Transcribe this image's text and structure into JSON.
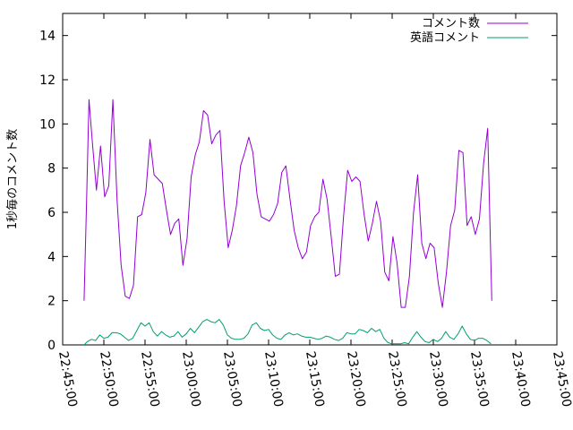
{
  "chart_data": {
    "type": "line",
    "ylabel": "1秒毎のコメント数",
    "ylim": [
      0,
      15
    ],
    "yticks": [
      "0",
      "2",
      "4",
      "6",
      "8",
      "10",
      "12",
      "14"
    ],
    "xticks": [
      "22:45:00",
      "22:50:00",
      "22:55:00",
      "23:00:00",
      "23:05:00",
      "23:10:00",
      "23:15:00",
      "23:20:00",
      "23:25:00",
      "23:30:00",
      "23:35:00",
      "23:40:00",
      "23:45:00"
    ],
    "xlim_minutes": [
      0,
      60
    ],
    "legend_position": "top-right",
    "series": [
      {
        "name": "コメント数",
        "color": "#9400d3",
        "points": [
          [
            2.6,
            2.0
          ],
          [
            2.9,
            6.5
          ],
          [
            3.2,
            11.1
          ],
          [
            3.6,
            9.2
          ],
          [
            4.1,
            7.0
          ],
          [
            4.6,
            9.0
          ],
          [
            5.1,
            6.7
          ],
          [
            5.6,
            7.2
          ],
          [
            6.1,
            11.1
          ],
          [
            6.6,
            6.6
          ],
          [
            7.1,
            3.6
          ],
          [
            7.6,
            2.2
          ],
          [
            8.1,
            2.1
          ],
          [
            8.6,
            2.7
          ],
          [
            9.1,
            5.8
          ],
          [
            9.6,
            5.9
          ],
          [
            10.1,
            6.9
          ],
          [
            10.6,
            9.3
          ],
          [
            11.1,
            7.7
          ],
          [
            11.6,
            7.5
          ],
          [
            12.1,
            7.3
          ],
          [
            12.6,
            6.1
          ],
          [
            13.1,
            5.0
          ],
          [
            13.6,
            5.5
          ],
          [
            14.1,
            5.7
          ],
          [
            14.6,
            3.6
          ],
          [
            15.1,
            4.8
          ],
          [
            15.6,
            7.6
          ],
          [
            16.1,
            8.6
          ],
          [
            16.6,
            9.2
          ],
          [
            17.1,
            10.6
          ],
          [
            17.6,
            10.4
          ],
          [
            18.1,
            9.1
          ],
          [
            18.6,
            9.5
          ],
          [
            19.1,
            9.7
          ],
          [
            19.6,
            6.5
          ],
          [
            20.1,
            4.4
          ],
          [
            20.6,
            5.2
          ],
          [
            21.1,
            6.3
          ],
          [
            21.6,
            8.1
          ],
          [
            22.1,
            8.7
          ],
          [
            22.6,
            9.4
          ],
          [
            23.1,
            8.7
          ],
          [
            23.6,
            6.8
          ],
          [
            24.1,
            5.8
          ],
          [
            24.6,
            5.7
          ],
          [
            25.1,
            5.6
          ],
          [
            25.6,
            5.9
          ],
          [
            26.1,
            6.4
          ],
          [
            26.6,
            7.8
          ],
          [
            27.1,
            8.1
          ],
          [
            27.6,
            6.6
          ],
          [
            28.1,
            5.2
          ],
          [
            28.6,
            4.4
          ],
          [
            29.1,
            3.9
          ],
          [
            29.6,
            4.2
          ],
          [
            30.1,
            5.4
          ],
          [
            30.6,
            5.8
          ],
          [
            31.1,
            6.0
          ],
          [
            31.6,
            7.5
          ],
          [
            32.1,
            6.6
          ],
          [
            32.6,
            4.9
          ],
          [
            33.1,
            3.1
          ],
          [
            33.6,
            3.2
          ],
          [
            34.1,
            5.8
          ],
          [
            34.6,
            7.9
          ],
          [
            35.1,
            7.4
          ],
          [
            35.6,
            7.6
          ],
          [
            36.1,
            7.4
          ],
          [
            36.6,
            5.9
          ],
          [
            37.1,
            4.7
          ],
          [
            37.6,
            5.5
          ],
          [
            38.1,
            6.5
          ],
          [
            38.6,
            5.6
          ],
          [
            39.1,
            3.3
          ],
          [
            39.6,
            2.9
          ],
          [
            40.1,
            4.9
          ],
          [
            40.6,
            3.7
          ],
          [
            41.1,
            1.7
          ],
          [
            41.6,
            1.7
          ],
          [
            42.1,
            3.1
          ],
          [
            42.6,
            6.0
          ],
          [
            43.1,
            7.7
          ],
          [
            43.6,
            4.6
          ],
          [
            44.1,
            3.9
          ],
          [
            44.6,
            4.6
          ],
          [
            45.1,
            4.4
          ],
          [
            45.6,
            2.8
          ],
          [
            46.1,
            1.7
          ],
          [
            46.6,
            3.3
          ],
          [
            47.1,
            5.4
          ],
          [
            47.6,
            6.1
          ],
          [
            48.1,
            8.8
          ],
          [
            48.6,
            8.7
          ],
          [
            49.1,
            5.4
          ],
          [
            49.6,
            5.8
          ],
          [
            50.1,
            5.0
          ],
          [
            50.6,
            5.7
          ],
          [
            51.1,
            8.2
          ],
          [
            51.6,
            9.8
          ],
          [
            52.1,
            2.0
          ]
        ]
      },
      {
        "name": "英語コメント",
        "color": "#009e73",
        "points": [
          [
            2.6,
            0.0
          ],
          [
            3.0,
            0.15
          ],
          [
            3.5,
            0.25
          ],
          [
            4.0,
            0.2
          ],
          [
            4.5,
            0.45
          ],
          [
            5.0,
            0.3
          ],
          [
            5.5,
            0.35
          ],
          [
            6.0,
            0.55
          ],
          [
            6.5,
            0.55
          ],
          [
            7.0,
            0.5
          ],
          [
            7.5,
            0.35
          ],
          [
            8.0,
            0.2
          ],
          [
            8.5,
            0.3
          ],
          [
            9.0,
            0.65
          ],
          [
            9.5,
            1.0
          ],
          [
            10.0,
            0.85
          ],
          [
            10.5,
            1.0
          ],
          [
            11.0,
            0.6
          ],
          [
            11.5,
            0.4
          ],
          [
            12.0,
            0.6
          ],
          [
            12.5,
            0.45
          ],
          [
            13.0,
            0.35
          ],
          [
            13.5,
            0.4
          ],
          [
            14.0,
            0.6
          ],
          [
            14.5,
            0.35
          ],
          [
            15.0,
            0.5
          ],
          [
            15.5,
            0.75
          ],
          [
            16.0,
            0.55
          ],
          [
            16.5,
            0.8
          ],
          [
            17.0,
            1.05
          ],
          [
            17.5,
            1.15
          ],
          [
            18.0,
            1.05
          ],
          [
            18.5,
            1.0
          ],
          [
            19.0,
            1.15
          ],
          [
            19.5,
            0.9
          ],
          [
            20.0,
            0.45
          ],
          [
            20.5,
            0.3
          ],
          [
            21.0,
            0.25
          ],
          [
            21.5,
            0.25
          ],
          [
            22.0,
            0.3
          ],
          [
            22.5,
            0.5
          ],
          [
            23.0,
            0.9
          ],
          [
            23.5,
            1.0
          ],
          [
            24.0,
            0.75
          ],
          [
            24.5,
            0.65
          ],
          [
            25.0,
            0.7
          ],
          [
            25.5,
            0.45
          ],
          [
            26.0,
            0.3
          ],
          [
            26.5,
            0.25
          ],
          [
            27.0,
            0.45
          ],
          [
            27.5,
            0.55
          ],
          [
            28.0,
            0.45
          ],
          [
            28.5,
            0.5
          ],
          [
            29.0,
            0.4
          ],
          [
            29.5,
            0.35
          ],
          [
            30.0,
            0.35
          ],
          [
            30.5,
            0.3
          ],
          [
            31.0,
            0.25
          ],
          [
            31.5,
            0.3
          ],
          [
            32.0,
            0.4
          ],
          [
            32.5,
            0.35
          ],
          [
            33.0,
            0.25
          ],
          [
            33.5,
            0.2
          ],
          [
            34.0,
            0.3
          ],
          [
            34.5,
            0.55
          ],
          [
            35.0,
            0.5
          ],
          [
            35.5,
            0.5
          ],
          [
            36.0,
            0.7
          ],
          [
            36.5,
            0.65
          ],
          [
            37.0,
            0.55
          ],
          [
            37.5,
            0.75
          ],
          [
            38.0,
            0.6
          ],
          [
            38.5,
            0.7
          ],
          [
            39.0,
            0.3
          ],
          [
            39.5,
            0.1
          ],
          [
            40.0,
            0.05
          ],
          [
            40.5,
            0.05
          ],
          [
            41.0,
            0.05
          ],
          [
            41.5,
            0.1
          ],
          [
            42.0,
            0.05
          ],
          [
            42.5,
            0.35
          ],
          [
            43.0,
            0.6
          ],
          [
            43.5,
            0.35
          ],
          [
            44.0,
            0.15
          ],
          [
            44.5,
            0.1
          ],
          [
            45.0,
            0.25
          ],
          [
            45.5,
            0.15
          ],
          [
            46.0,
            0.3
          ],
          [
            46.5,
            0.6
          ],
          [
            47.0,
            0.35
          ],
          [
            47.5,
            0.25
          ],
          [
            48.0,
            0.5
          ],
          [
            48.5,
            0.85
          ],
          [
            49.0,
            0.5
          ],
          [
            49.5,
            0.25
          ],
          [
            50.0,
            0.2
          ],
          [
            50.5,
            0.3
          ],
          [
            51.0,
            0.3
          ],
          [
            51.5,
            0.2
          ],
          [
            52.0,
            0.05
          ]
        ]
      }
    ]
  }
}
